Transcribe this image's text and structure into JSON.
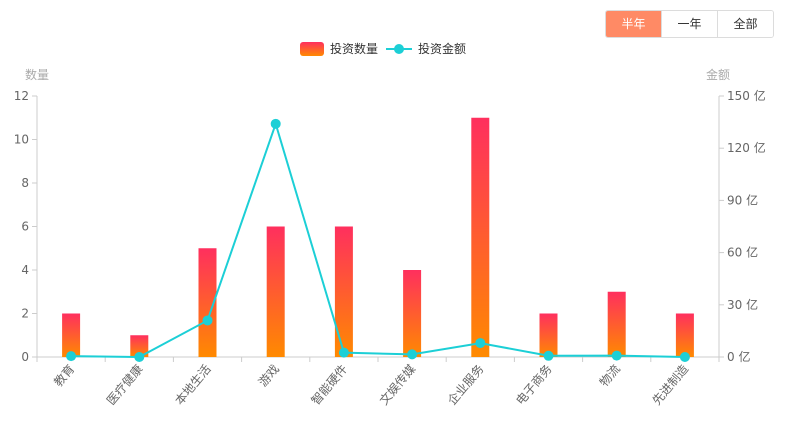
{
  "range_tabs": [
    {
      "label": "半年",
      "active": true
    },
    {
      "label": "一年",
      "active": false
    },
    {
      "label": "全部",
      "active": false
    }
  ],
  "colors": {
    "bar_top": "#ff2f5e",
    "bar_bottom": "#ff8a00",
    "line": "#1ccfd6",
    "active_tab": "#ff8a65"
  },
  "chart_data": {
    "type": "bar+line",
    "categories": [
      "教育",
      "医疗健康",
      "本地生活",
      "游戏",
      "智能硬件",
      "文娱传媒",
      "企业服务",
      "电子商务",
      "物流",
      "先进制造"
    ],
    "series": [
      {
        "name": "投资数量",
        "type": "bar",
        "axis": "left",
        "values": [
          2,
          1,
          5,
          6,
          6,
          4,
          11,
          2,
          3,
          2
        ]
      },
      {
        "name": "投资金额",
        "type": "line",
        "axis": "right",
        "values": [
          0.5,
          0,
          21,
          134,
          2.5,
          1.5,
          8,
          0.7,
          0.8,
          0
        ]
      }
    ],
    "y_left": {
      "label": "数量",
      "min": 0,
      "max": 12,
      "ticks": [
        "0",
        "2",
        "4",
        "6",
        "8",
        "10",
        "12"
      ]
    },
    "y_right": {
      "label": "金额",
      "min": 0,
      "max": 150,
      "ticks": [
        "0 亿",
        "30 亿",
        "60 亿",
        "90 亿",
        "120 亿",
        "150 亿"
      ]
    },
    "legend_position": "top-center",
    "grid": false
  }
}
